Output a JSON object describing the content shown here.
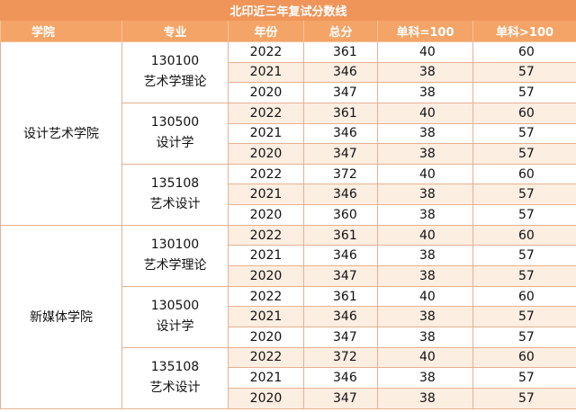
{
  "title": "北印近三年复试分数线",
  "headers": {
    "college": "学院",
    "major": "专业",
    "year": "年份",
    "total": "总分",
    "single100": "单科=100",
    "single_gt100": "单科>100"
  },
  "colors": {
    "title_bg": "#f0955a",
    "header_bg": "#f4a466",
    "stripe": "#fdeee2",
    "border": "#e7b08f"
  },
  "colleges": [
    {
      "name": "设计艺术学院",
      "majors": [
        {
          "code": "130100",
          "name": "艺术学理论",
          "rows": [
            {
              "year": "2022",
              "total": "361",
              "s100": "40",
              "sg100": "60"
            },
            {
              "year": "2021",
              "total": "346",
              "s100": "38",
              "sg100": "57"
            },
            {
              "year": "2020",
              "total": "347",
              "s100": "38",
              "sg100": "57"
            }
          ]
        },
        {
          "code": "130500",
          "name": "设计学",
          "rows": [
            {
              "year": "2022",
              "total": "361",
              "s100": "40",
              "sg100": "60"
            },
            {
              "year": "2021",
              "total": "346",
              "s100": "38",
              "sg100": "57"
            },
            {
              "year": "2020",
              "total": "347",
              "s100": "38",
              "sg100": "57"
            }
          ]
        },
        {
          "code": "135108",
          "name": "艺术设计",
          "rows": [
            {
              "year": "2022",
              "total": "372",
              "s100": "40",
              "sg100": "60"
            },
            {
              "year": "2021",
              "total": "346",
              "s100": "38",
              "sg100": "57"
            },
            {
              "year": "2020",
              "total": "360",
              "s100": "38",
              "sg100": "57"
            }
          ]
        }
      ]
    },
    {
      "name": "新媒体学院",
      "majors": [
        {
          "code": "130100",
          "name": "艺术学理论",
          "rows": [
            {
              "year": "2022",
              "total": "361",
              "s100": "40",
              "sg100": "60"
            },
            {
              "year": "2021",
              "total": "346",
              "s100": "38",
              "sg100": "57"
            },
            {
              "year": "2020",
              "total": "347",
              "s100": "38",
              "sg100": "57"
            }
          ]
        },
        {
          "code": "130500",
          "name": "设计学",
          "rows": [
            {
              "year": "2022",
              "total": "361",
              "s100": "40",
              "sg100": "60"
            },
            {
              "year": "2021",
              "total": "346",
              "s100": "38",
              "sg100": "57"
            },
            {
              "year": "2020",
              "total": "347",
              "s100": "38",
              "sg100": "57"
            }
          ]
        },
        {
          "code": "135108",
          "name": "艺术设计",
          "rows": [
            {
              "year": "2022",
              "total": "372",
              "s100": "40",
              "sg100": "60"
            },
            {
              "year": "2021",
              "total": "346",
              "s100": "38",
              "sg100": "57"
            },
            {
              "year": "2020",
              "total": "347",
              "s100": "38",
              "sg100": "57"
            }
          ]
        }
      ]
    }
  ]
}
